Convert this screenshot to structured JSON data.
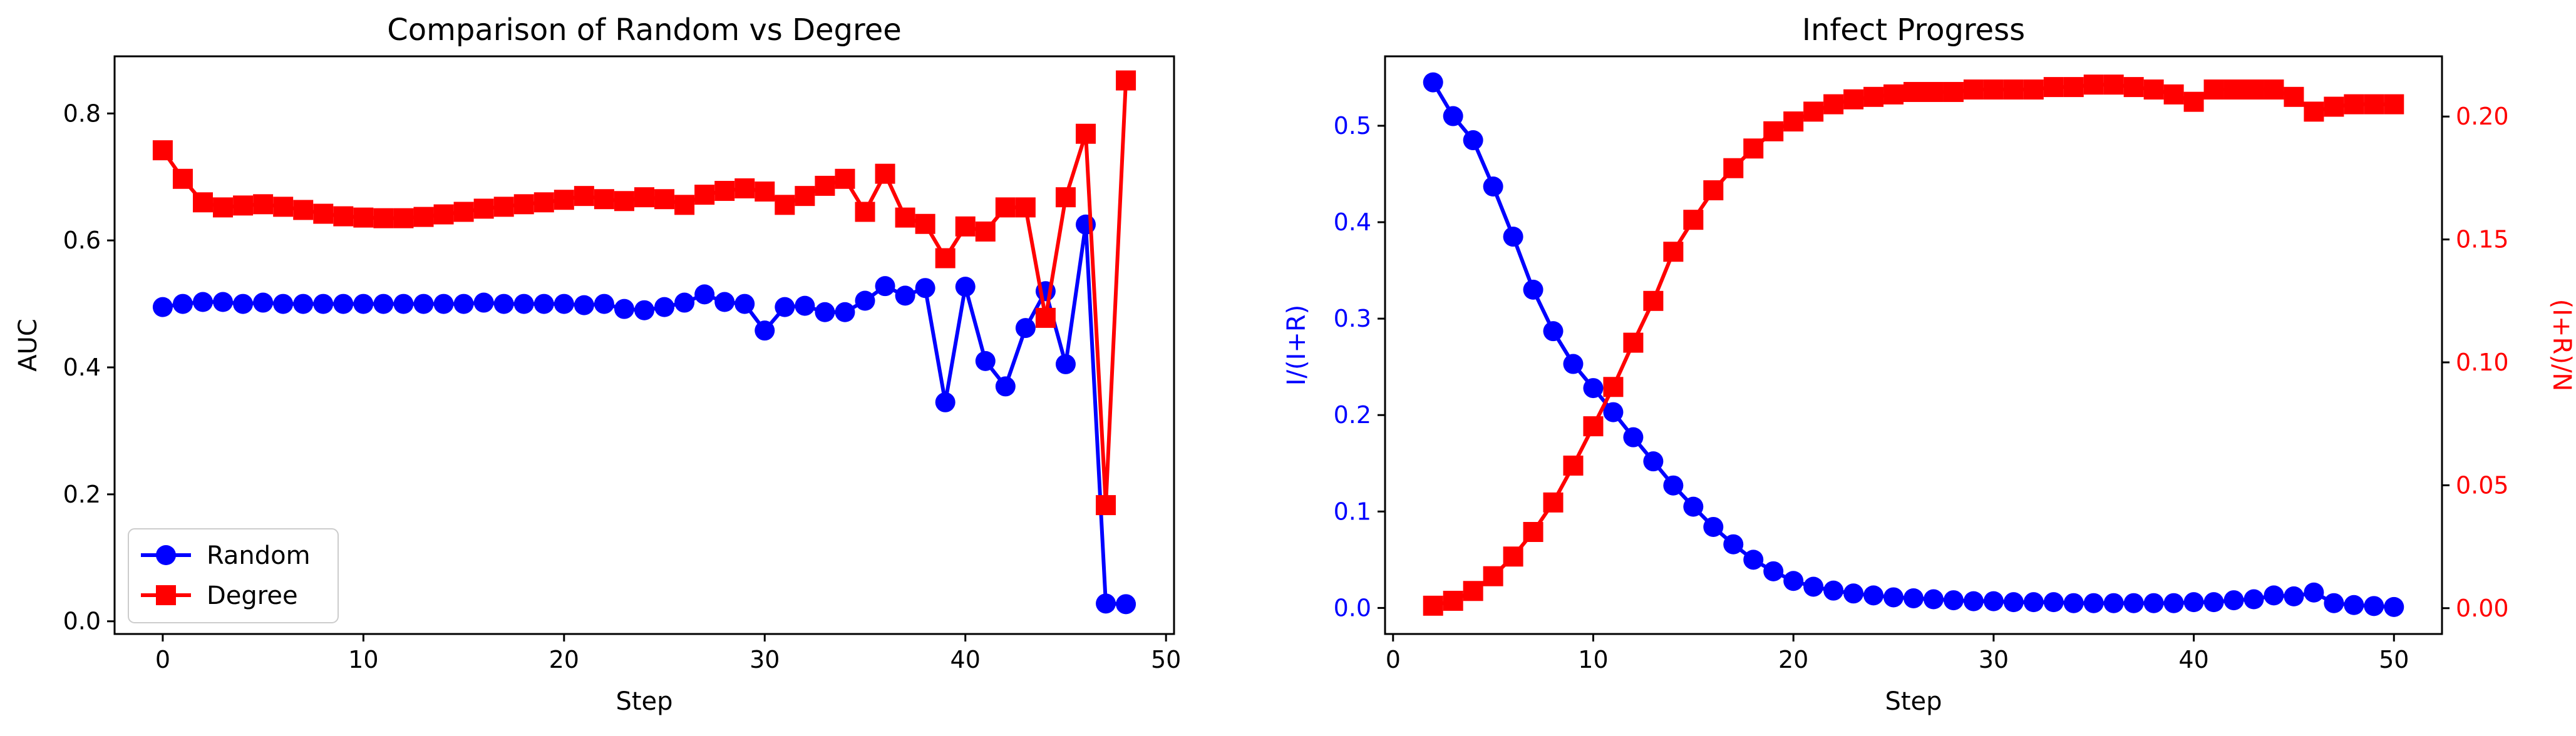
{
  "chart_data": [
    {
      "type": "line",
      "title": "Comparison of Random vs Degree",
      "xlabel": "Step",
      "ylabel": "AUC",
      "xlim": [
        -2.4,
        50.4
      ],
      "ylim": [
        -0.02,
        0.89
      ],
      "xticks": [
        0,
        10,
        20,
        30,
        40,
        50
      ],
      "yticks": [
        0.0,
        0.2,
        0.4,
        0.6,
        0.8
      ],
      "legend_position": "lower-left",
      "grid": false,
      "x": [
        0,
        1,
        2,
        3,
        4,
        5,
        6,
        7,
        8,
        9,
        10,
        11,
        12,
        13,
        14,
        15,
        16,
        17,
        18,
        19,
        20,
        21,
        22,
        23,
        24,
        25,
        26,
        27,
        28,
        29,
        30,
        31,
        32,
        33,
        34,
        35,
        36,
        37,
        38,
        39,
        40,
        41,
        42,
        43,
        44,
        45,
        46,
        47,
        48
      ],
      "series": [
        {
          "name": "Random",
          "color": "#0000ff",
          "marker": "circle",
          "values": [
            0.495,
            0.5,
            0.503,
            0.503,
            0.5,
            0.502,
            0.5,
            0.5,
            0.5,
            0.5,
            0.5,
            0.5,
            0.5,
            0.5,
            0.5,
            0.5,
            0.502,
            0.5,
            0.5,
            0.5,
            0.5,
            0.498,
            0.5,
            0.492,
            0.49,
            0.495,
            0.502,
            0.515,
            0.503,
            0.5,
            0.458,
            0.495,
            0.497,
            0.487,
            0.487,
            0.505,
            0.528,
            0.513,
            0.525,
            0.345,
            0.527,
            0.41,
            0.37,
            0.462,
            0.52,
            0.405,
            0.625,
            0.028,
            0.027
          ]
        },
        {
          "name": "Degree",
          "color": "#ff0000",
          "marker": "square",
          "values": [
            0.742,
            0.697,
            0.66,
            0.652,
            0.655,
            0.657,
            0.653,
            0.648,
            0.642,
            0.638,
            0.636,
            0.635,
            0.635,
            0.637,
            0.641,
            0.645,
            0.65,
            0.653,
            0.657,
            0.66,
            0.664,
            0.67,
            0.665,
            0.662,
            0.668,
            0.665,
            0.656,
            0.672,
            0.678,
            0.682,
            0.677,
            0.656,
            0.67,
            0.686,
            0.697,
            0.645,
            0.705,
            0.636,
            0.626,
            0.572,
            0.622,
            0.614,
            0.652,
            0.652,
            0.478,
            0.668,
            0.768,
            0.183,
            0.852
          ]
        }
      ]
    },
    {
      "type": "line",
      "title": "Infect Progress",
      "xlabel": "Step",
      "ylabel": "I/(I+R)",
      "ylabel_right": "(I+R)/N",
      "xlim": [
        -0.4,
        52.4
      ],
      "ylim": [
        -0.027,
        0.572
      ],
      "ylim_right": [
        -0.0105,
        0.2245
      ],
      "xticks": [
        0,
        10,
        20,
        30,
        40,
        50
      ],
      "yticks": [
        0.0,
        0.1,
        0.2,
        0.3,
        0.4,
        0.5
      ],
      "yticks_right": [
        0.0,
        0.05,
        0.1,
        0.15,
        0.2
      ],
      "grid": false,
      "x": [
        2,
        3,
        4,
        5,
        6,
        7,
        8,
        9,
        10,
        11,
        12,
        13,
        14,
        15,
        16,
        17,
        18,
        19,
        20,
        21,
        22,
        23,
        24,
        25,
        26,
        27,
        28,
        29,
        30,
        31,
        32,
        33,
        34,
        35,
        36,
        37,
        38,
        39,
        40,
        41,
        42,
        43,
        44,
        45,
        46,
        47,
        48,
        49,
        50
      ],
      "series": [
        {
          "axis": "left",
          "color": "#0000ff",
          "marker": "circle",
          "values": [
            0.545,
            0.51,
            0.485,
            0.437,
            0.385,
            0.33,
            0.287,
            0.253,
            0.228,
            0.203,
            0.177,
            0.152,
            0.127,
            0.105,
            0.084,
            0.066,
            0.05,
            0.038,
            0.028,
            0.022,
            0.018,
            0.015,
            0.013,
            0.011,
            0.01,
            0.009,
            0.008,
            0.007,
            0.007,
            0.006,
            0.006,
            0.006,
            0.005,
            0.005,
            0.005,
            0.005,
            0.005,
            0.005,
            0.006,
            0.006,
            0.008,
            0.009,
            0.013,
            0.012,
            0.016,
            0.005,
            0.003,
            0.002,
            0.001
          ]
        },
        {
          "axis": "right",
          "color": "#ff0000",
          "marker": "square",
          "values": [
            0.001,
            0.003,
            0.007,
            0.013,
            0.021,
            0.031,
            0.043,
            0.058,
            0.074,
            0.09,
            0.108,
            0.125,
            0.145,
            0.158,
            0.17,
            0.179,
            0.187,
            0.194,
            0.198,
            0.202,
            0.205,
            0.207,
            0.208,
            0.209,
            0.21,
            0.21,
            0.21,
            0.211,
            0.211,
            0.211,
            0.211,
            0.212,
            0.212,
            0.213,
            0.213,
            0.212,
            0.211,
            0.209,
            0.206,
            0.211,
            0.211,
            0.211,
            0.211,
            0.208,
            0.202,
            0.204,
            0.205,
            0.205,
            0.205
          ]
        }
      ]
    }
  ]
}
